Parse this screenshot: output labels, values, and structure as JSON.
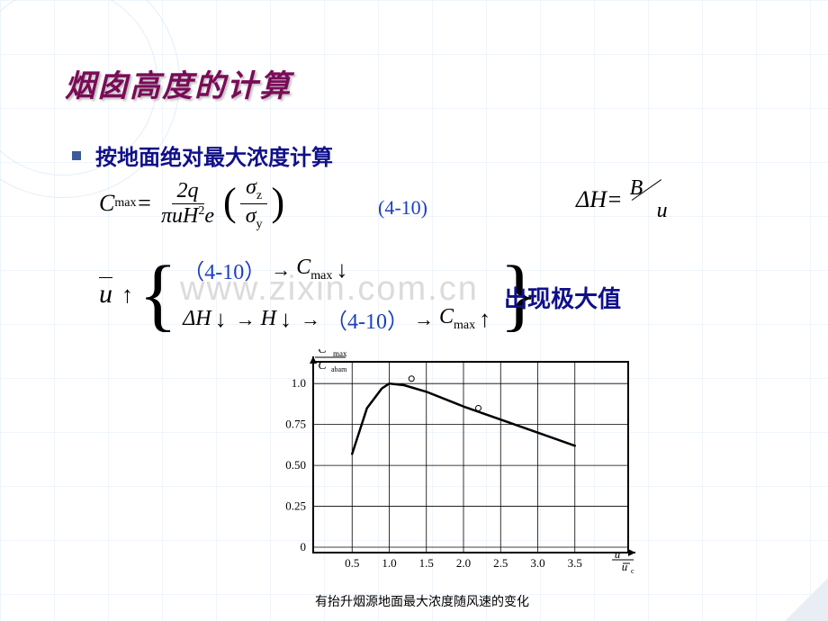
{
  "title": "烟囱高度的计算",
  "bullet": "按地面绝对最大浓度计算",
  "eq_ref": "(4-10)",
  "eq_right_lhs": "ΔH=",
  "eq_right_B": "B",
  "eq_right_u": "u",
  "main_eq": {
    "lhs": "C",
    "lhs_sub": "max",
    "eq": " = ",
    "num": "2q",
    "den_pi": "π",
    "den_u": "u",
    "den_H": "H",
    "den_exp": "2",
    "den_e": "e",
    "sigma_num": "σ",
    "sigma_num_sub": "z",
    "sigma_den": "σ",
    "sigma_den_sub": "y"
  },
  "brace": {
    "u": "u",
    "ref": "（4-10）",
    "Cmax": "C",
    "Cmax_sub": "max",
    "dH": "ΔH",
    "H": "H"
  },
  "max_label": "出现极大值",
  "watermark": "www.zixin.com.cn",
  "chart": {
    "type": "line",
    "ylabel_num": "C",
    "ylabel_num_sub": "max",
    "ylabel_den": "C",
    "ylabel_den_sub": "abam",
    "xlabel_num": "u",
    "xlabel_den": "u",
    "xlabel_den_sub": "c",
    "xticks": [
      "0.5",
      "1.0",
      "1.5",
      "2.0",
      "2.5",
      "3.0",
      "3.5"
    ],
    "yticks": [
      "0",
      "0.25",
      "0.50",
      "0.75",
      "1.0"
    ],
    "xlim": [
      0,
      4.0
    ],
    "ylim": [
      0,
      1.1
    ],
    "bg": "#ffffff",
    "grid_color": "#000000",
    "line_color": "#000000",
    "line_width": 2.5,
    "data_x": [
      0.5,
      0.7,
      0.9,
      1.0,
      1.2,
      1.5,
      2.0,
      2.5,
      3.0,
      3.5
    ],
    "data_y": [
      0.57,
      0.85,
      0.97,
      1.0,
      0.99,
      0.95,
      0.86,
      0.78,
      0.7,
      0.62
    ],
    "markers_x": [
      1.3,
      2.2
    ],
    "markers_y": [
      1.03,
      0.85
    ],
    "caption": "有抬升烟源地面最大浓度随风速的变化"
  },
  "colors": {
    "title": "#7a0b58",
    "accent": "#10108a",
    "ref": "#1a3fbf",
    "grid": "#d0e4f5"
  }
}
